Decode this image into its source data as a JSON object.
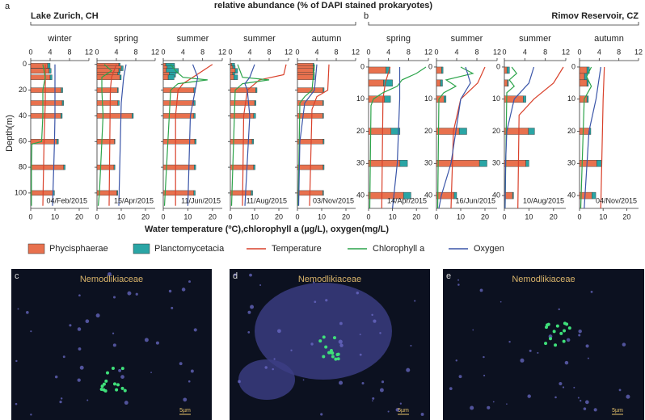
{
  "figure": {
    "panel_labels": [
      "a",
      "b"
    ],
    "groups": [
      "Lake Zurich, CH",
      "Rimov Reservoir, CZ"
    ],
    "top_axis_title": "relative abundance (% of DAPI stained prokaryotes)",
    "bottom_axis_title": "Water temperature (ºC),chlorophyll a (µg/L), oxygen(mg/L)",
    "y_axis_title": "Depth(m)"
  },
  "legend": [
    {
      "name": "Phycisphaerae",
      "color": "#e8714e"
    },
    {
      "name": "Planctomycetacia",
      "color": "#2aa5a5"
    },
    {
      "name": "Temperature",
      "color": "#d9412b"
    },
    {
      "name": "Chlorophyll a",
      "color": "#2ca44a"
    },
    {
      "name": "Oxygen",
      "color": "#3a55a8"
    }
  ],
  "chart_data": [
    {
      "type": "profile",
      "label": "winter",
      "date": "04/Feb/2015",
      "xlim": [
        0,
        12
      ],
      "xticks": [
        0,
        4,
        8,
        12
      ],
      "x2lim": [
        0,
        24
      ],
      "x2ticks": [
        0,
        10,
        20
      ],
      "ylim": [
        -3,
        112
      ],
      "yticks": [
        0,
        20,
        40,
        60,
        80,
        100
      ],
      "show_ytick_labels": true,
      "depths": [
        1,
        5,
        10,
        20,
        30,
        40,
        60,
        80,
        100
      ],
      "series": [
        {
          "values": [
            3.5,
            3.8,
            4.0,
            6.3,
            6.5,
            6.2,
            5.4,
            6.8,
            4.6
          ]
        },
        {
          "values": [
            0.5,
            0.4,
            0.4,
            0.3,
            0.3,
            0.3,
            0.3,
            0.3,
            0.3
          ]
        }
      ],
      "lines": [
        {
          "depths": [
            0,
            30,
            60,
            110
          ],
          "values": [
            6,
            6,
            5.5,
            5
          ]
        },
        {
          "depths": [
            0,
            10,
            20,
            40,
            60,
            62,
            80,
            110
          ],
          "values": [
            5,
            6,
            5,
            5,
            4.5,
            0.5,
            0.3,
            0.3
          ]
        },
        {
          "depths": [
            0,
            40,
            60,
            80,
            110
          ],
          "values": [
            10,
            10,
            9.8,
            9.5,
            9
          ]
        }
      ]
    },
    {
      "type": "profile",
      "label": "spring",
      "date": "15/Apr/2015",
      "xlim": [
        0,
        12
      ],
      "xticks": [
        0,
        4,
        8,
        12
      ],
      "x2lim": [
        0,
        24
      ],
      "x2ticks": [
        0,
        10,
        20
      ],
      "ylim": [
        -3,
        112
      ],
      "yticks": [
        0,
        20,
        40,
        60,
        80,
        100
      ],
      "show_ytick_labels": false,
      "depths": [
        1,
        3,
        5,
        8,
        10,
        20,
        30,
        40,
        60,
        80,
        100
      ],
      "series": [
        {
          "values": [
            4.5,
            5,
            4.5,
            4.3,
            4.7,
            4.2,
            4.3,
            7.2,
            3.6,
            3.5,
            4.1
          ]
        },
        {
          "values": [
            0.3,
            0.4,
            0.3,
            0.3,
            0.3,
            0.2,
            0.3,
            0.3,
            0.1,
            0.2,
            0.2
          ]
        }
      ],
      "lines": [
        {
          "depths": [
            0,
            10,
            20,
            110
          ],
          "values": [
            8,
            6,
            5.5,
            5
          ]
        },
        {
          "depths": [
            0,
            5,
            10,
            20,
            40,
            60,
            80,
            100,
            110
          ],
          "values": [
            3,
            6,
            2,
            2,
            2.5,
            2,
            1.5,
            1,
            0.5
          ]
        },
        {
          "depths": [
            0,
            10,
            30,
            110
          ],
          "values": [
            12,
            11,
            10,
            9
          ]
        }
      ]
    },
    {
      "type": "profile",
      "label": "summer",
      "date": "11/Jun/2015",
      "xlim": [
        0,
        12
      ],
      "xticks": [
        0,
        4,
        8,
        12
      ],
      "x2lim": [
        0,
        24
      ],
      "x2ticks": [
        0,
        10,
        20
      ],
      "ylim": [
        -3,
        112
      ],
      "yticks": [
        0,
        20,
        40,
        60,
        80,
        100
      ],
      "show_ytick_labels": false,
      "depths": [
        1,
        3,
        5,
        8,
        10,
        20,
        30,
        40,
        60,
        80,
        100
      ],
      "series": [
        {
          "values": [
            0.5,
            0.8,
            0.6,
            1.2,
            1,
            6.2,
            6.2,
            6.2,
            6.4,
            6.3,
            6.2
          ]
        },
        {
          "values": [
            1.8,
            1.5,
            2.5,
            1.3,
            1.2,
            0.3,
            0.3,
            0.3,
            0.3,
            0.3,
            0.3
          ]
        }
      ],
      "lines": [
        {
          "depths": [
            0,
            5,
            10,
            15,
            20,
            40,
            110
          ],
          "values": [
            20,
            16,
            12,
            8,
            6,
            5,
            5
          ]
        },
        {
          "depths": [
            0,
            5,
            10,
            12,
            15,
            20,
            110
          ],
          "values": [
            3,
            5,
            8,
            18,
            6,
            3,
            0.5
          ]
        },
        {
          "depths": [
            0,
            10,
            20,
            40,
            110
          ],
          "values": [
            12,
            14,
            13,
            11,
            10
          ]
        }
      ]
    },
    {
      "type": "profile",
      "label": "summer",
      "date": "11/Aug/2015",
      "xlim": [
        0,
        12
      ],
      "xticks": [
        0,
        4,
        8,
        12
      ],
      "x2lim": [
        0,
        24
      ],
      "x2ticks": [
        0,
        10,
        20
      ],
      "ylim": [
        -3,
        112
      ],
      "yticks": [
        0,
        20,
        40,
        60,
        80,
        100
      ],
      "show_ytick_labels": false,
      "depths": [
        1,
        3,
        5,
        8,
        10,
        20,
        30,
        40,
        60,
        80,
        100
      ],
      "series": [
        {
          "values": [
            0.3,
            0.5,
            1,
            0.5,
            0.7,
            5.2,
            5,
            4.8,
            4.5,
            4.8,
            4.3
          ]
        },
        {
          "values": [
            0.6,
            0.5,
            0.5,
            0.4,
            0.8,
            0.3,
            0.3,
            0.4,
            0.3,
            0.3,
            0.3
          ]
        }
      ],
      "lines": [
        {
          "depths": [
            0,
            8,
            12,
            20,
            40,
            110
          ],
          "values": [
            23,
            22,
            12,
            7,
            5.5,
            5
          ]
        },
        {
          "depths": [
            0,
            10,
            12,
            15,
            20,
            110
          ],
          "values": [
            3,
            5,
            16,
            5,
            2,
            0.5
          ]
        },
        {
          "depths": [
            0,
            10,
            15,
            20,
            40,
            110
          ],
          "values": [
            10,
            8,
            6,
            7,
            8,
            6
          ]
        }
      ]
    },
    {
      "type": "profile",
      "label": "autumn",
      "date": "03/Nov/2015",
      "xlim": [
        0,
        12
      ],
      "xticks": [
        0,
        4,
        8,
        12
      ],
      "x2lim": [
        0,
        24
      ],
      "x2ticks": [
        0,
        10,
        20
      ],
      "ylim": [
        -3,
        112
      ],
      "yticks": [
        0,
        20,
        40,
        60,
        80,
        100
      ],
      "show_ytick_labels": false,
      "depths": [
        1,
        3,
        5,
        8,
        10,
        20,
        30,
        40,
        60,
        80,
        100
      ],
      "series": [
        {
          "values": [
            3.2,
            3.3,
            3.2,
            3.3,
            3.3,
            5.3,
            5.2,
            5.2,
            5.3,
            5.3,
            5.2
          ]
        },
        {
          "values": [
            0.2,
            0.2,
            0.2,
            0.2,
            0.2,
            0.2,
            0.2,
            0.2,
            0.2,
            0.2,
            0.2
          ]
        }
      ],
      "lines": [
        {
          "depths": [
            0,
            20,
            25,
            35,
            110
          ],
          "values": [
            13,
            12.5,
            8,
            6,
            5
          ]
        },
        {
          "depths": [
            0,
            20,
            25,
            30,
            110
          ],
          "values": [
            7,
            6,
            3,
            1,
            0.3
          ]
        },
        {
          "depths": [
            0,
            20,
            30,
            60,
            110
          ],
          "values": [
            8,
            7,
            3,
            1,
            0.5
          ]
        }
      ]
    },
    {
      "type": "profile",
      "label": "spring",
      "date": "14/Apr/2015",
      "xlim": [
        0,
        12
      ],
      "xticks": [
        0,
        4,
        8,
        12
      ],
      "x2lim": [
        0,
        25
      ],
      "x2ticks": [
        0,
        10,
        20
      ],
      "ylim": [
        -2,
        44
      ],
      "yticks": [
        0,
        10,
        20,
        30,
        40
      ],
      "show_ytick_labels": true,
      "depths": [
        1,
        5,
        10,
        20,
        30,
        40
      ],
      "series": [
        {
          "values": [
            3.5,
            3,
            3.2,
            4.5,
            6.3,
            7
          ]
        },
        {
          "values": [
            0.8,
            1.8,
            1.2,
            1.8,
            1.5,
            1.5
          ]
        }
      ],
      "lines": [
        {
          "depths": [
            0,
            5,
            10,
            44
          ],
          "values": [
            9,
            7,
            6,
            5.5
          ]
        },
        {
          "depths": [
            0,
            2,
            4,
            6,
            8,
            10,
            12,
            44
          ],
          "values": [
            24,
            20,
            14,
            12,
            6,
            2,
            1,
            0.5
          ]
        },
        {
          "depths": [
            0,
            10,
            30,
            44
          ],
          "values": [
            13,
            13,
            12,
            10
          ]
        }
      ]
    },
    {
      "type": "profile",
      "label": "summer",
      "date": "16/Jun/2015",
      "xlim": [
        0,
        12
      ],
      "xticks": [
        0,
        4,
        8,
        12
      ],
      "x2lim": [
        0,
        25
      ],
      "x2ticks": [
        0,
        10,
        20
      ],
      "ylim": [
        -2,
        44
      ],
      "yticks": [
        0,
        10,
        20,
        30,
        40
      ],
      "show_ytick_labels": true,
      "depths": [
        1,
        5,
        10,
        20,
        30,
        40
      ],
      "series": [
        {
          "values": [
            1,
            0.8,
            1.5,
            4.5,
            8.5,
            3.5
          ]
        },
        {
          "values": [
            0.3,
            0.4,
            0.4,
            1.5,
            1.5,
            0.5
          ]
        }
      ],
      "lines": [
        {
          "depths": [
            0,
            5,
            10,
            20,
            44
          ],
          "values": [
            20,
            17,
            10,
            7,
            6
          ]
        },
        {
          "depths": [
            0,
            2,
            4,
            6,
            8,
            10,
            44
          ],
          "values": [
            10,
            15,
            4,
            8,
            3,
            1,
            0.5
          ]
        },
        {
          "depths": [
            0,
            5,
            10,
            30,
            40,
            44
          ],
          "values": [
            12,
            14,
            10,
            6,
            2,
            1
          ]
        }
      ]
    },
    {
      "type": "profile",
      "label": "summer",
      "date": "10/Aug/2015",
      "xlim": [
        0,
        12
      ],
      "xticks": [
        0,
        4,
        8,
        12
      ],
      "x2lim": [
        0,
        25
      ],
      "x2ticks": [
        0,
        10,
        20
      ],
      "ylim": [
        -2,
        44
      ],
      "yticks": [
        0,
        10,
        20,
        30,
        40
      ],
      "show_ytick_labels": true,
      "depths": [
        1,
        5,
        10,
        20,
        30,
        40
      ],
      "series": [
        {
          "values": [
            0.5,
            0.6,
            3.7,
            4.7,
            4.2,
            1.6
          ]
        },
        {
          "values": [
            0.5,
            0.2,
            0.5,
            1.2,
            0.6,
            0.2
          ]
        }
      ],
      "lines": [
        {
          "depths": [
            0,
            5,
            10,
            15,
            44
          ],
          "values": [
            24,
            20,
            12,
            6,
            5.5
          ]
        },
        {
          "depths": [
            0,
            2,
            4,
            6,
            8,
            44
          ],
          "values": [
            3,
            5,
            2,
            4,
            1,
            0.3
          ]
        },
        {
          "depths": [
            0,
            5,
            10,
            20,
            30,
            44
          ],
          "values": [
            12,
            10,
            4,
            1,
            0.5,
            0.3
          ]
        }
      ]
    },
    {
      "type": "profile",
      "label": "autumn",
      "date": "04/Nov/2015",
      "xlim": [
        0,
        12
      ],
      "xticks": [
        0,
        4,
        8,
        12
      ],
      "x2lim": [
        0,
        25
      ],
      "x2ticks": [
        0,
        10,
        20
      ],
      "ylim": [
        -2,
        44
      ],
      "yticks": [
        0,
        10,
        20,
        30,
        40
      ],
      "show_ytick_labels": true,
      "depths": [
        1,
        3,
        5,
        10,
        20,
        30,
        40
      ],
      "series": [
        {
          "values": [
            1.5,
            1,
            1.5,
            1.5,
            2,
            3.5,
            2.5
          ]
        },
        {
          "values": [
            0.5,
            0.5,
            0.3,
            0.3,
            0.3,
            1,
            0.8
          ]
        }
      ],
      "lines": [
        {
          "depths": [
            0,
            10,
            44
          ],
          "values": [
            10.5,
            10,
            9
          ]
        },
        {
          "depths": [
            0,
            3,
            6,
            10,
            44
          ],
          "values": [
            5,
            3,
            5,
            2,
            0.5
          ]
        },
        {
          "depths": [
            0,
            10,
            20,
            44
          ],
          "values": [
            9,
            7,
            4,
            2
          ]
        }
      ]
    }
  ],
  "images": [
    {
      "label": "c",
      "title": "Nemodlikiaceae",
      "scale": "5µm"
    },
    {
      "label": "d",
      "title": "Nemodlikiaceae",
      "scale": "5µm"
    },
    {
      "label": "e",
      "title": "Nemodlikiaceae",
      "scale": "5µm"
    }
  ]
}
